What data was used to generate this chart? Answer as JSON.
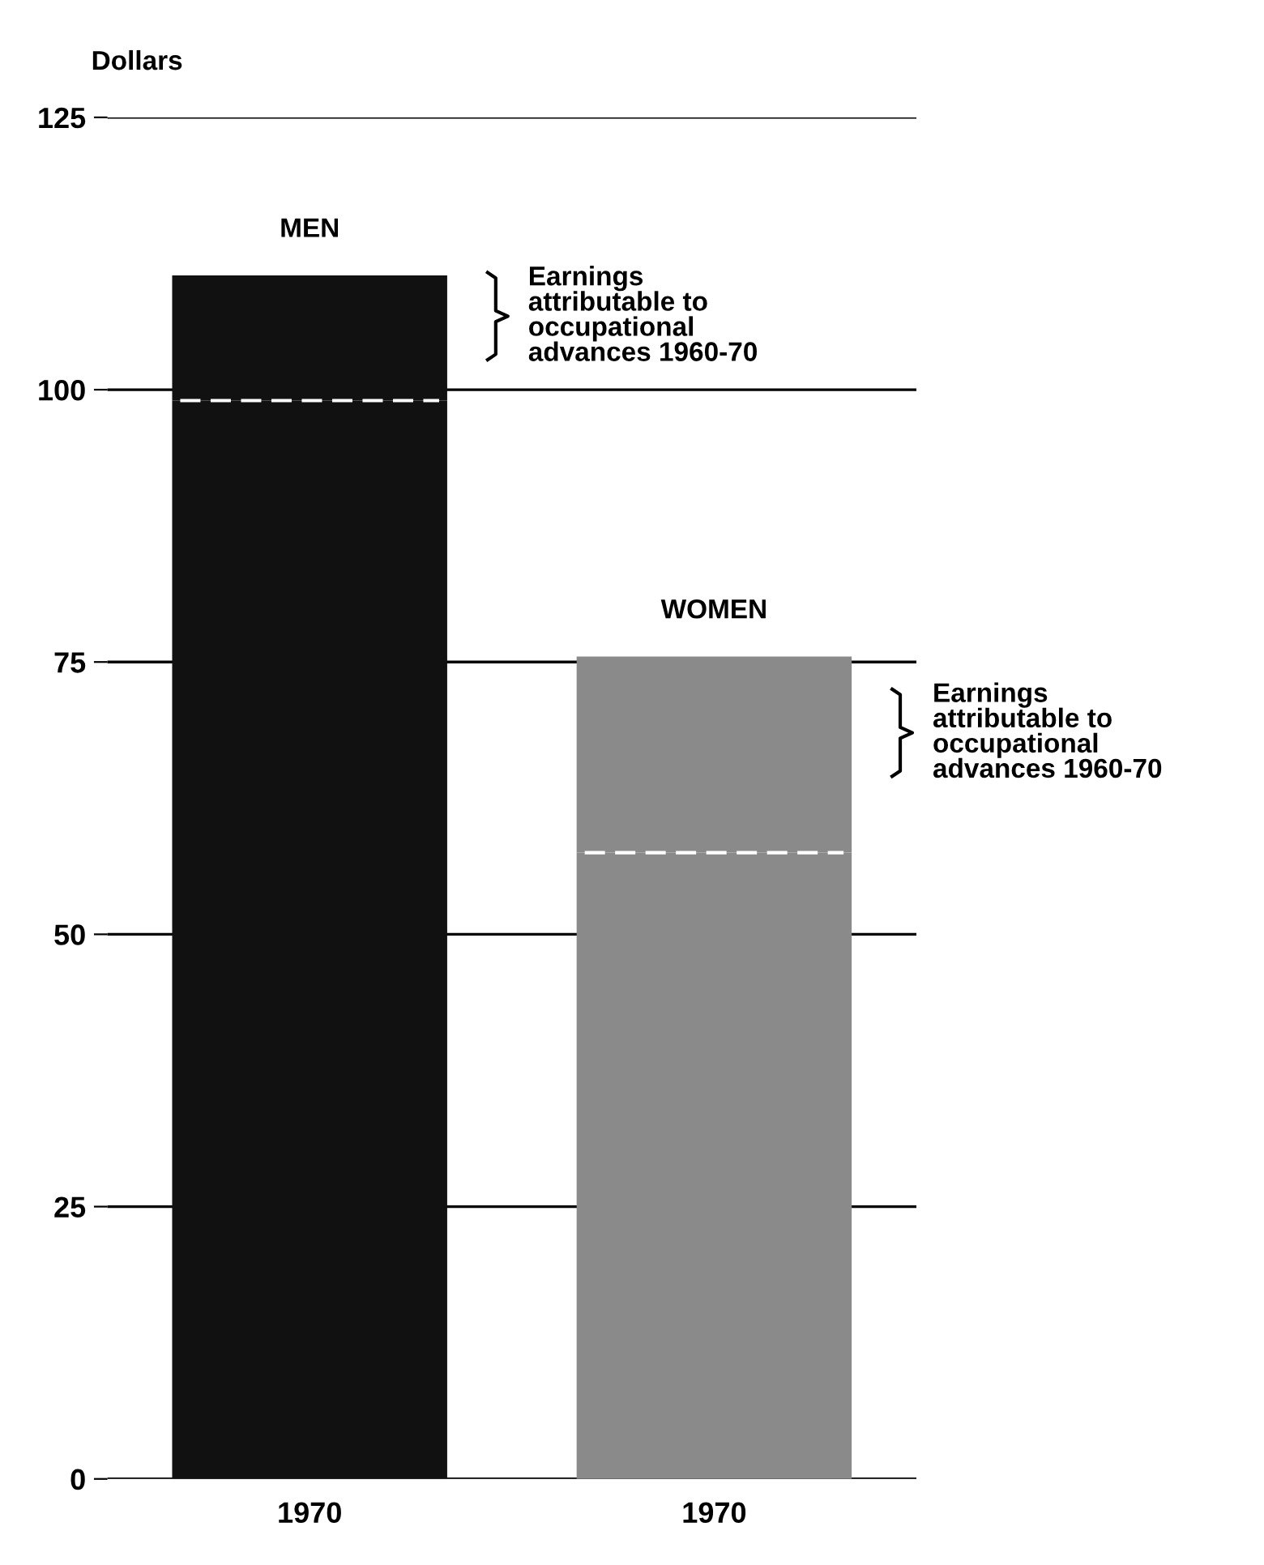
{
  "chart_data": {
    "type": "bar",
    "ylabel": "Dollars",
    "categories": [
      "1970",
      "1970"
    ],
    "stacked": true,
    "series": [
      {
        "colors": [
          "#111111",
          "#8a8a8a"
        ],
        "values": [
          99,
          57.5
        ]
      },
      {
        "colors": [
          "#111111",
          "#8a8a8a"
        ],
        "values": [
          11.5,
          18
        ]
      }
    ],
    "ylim": [
      0,
      125
    ],
    "yticks": [
      0,
      25,
      50,
      75,
      100,
      125
    ],
    "grid": "y",
    "annotations": [
      "MEN",
      "WOMEN",
      "Earnings\nattributable to\noccupational\nadvances 1960-70",
      "Earnings\nattributable to\noccupational\nadvances 1960-70"
    ]
  }
}
